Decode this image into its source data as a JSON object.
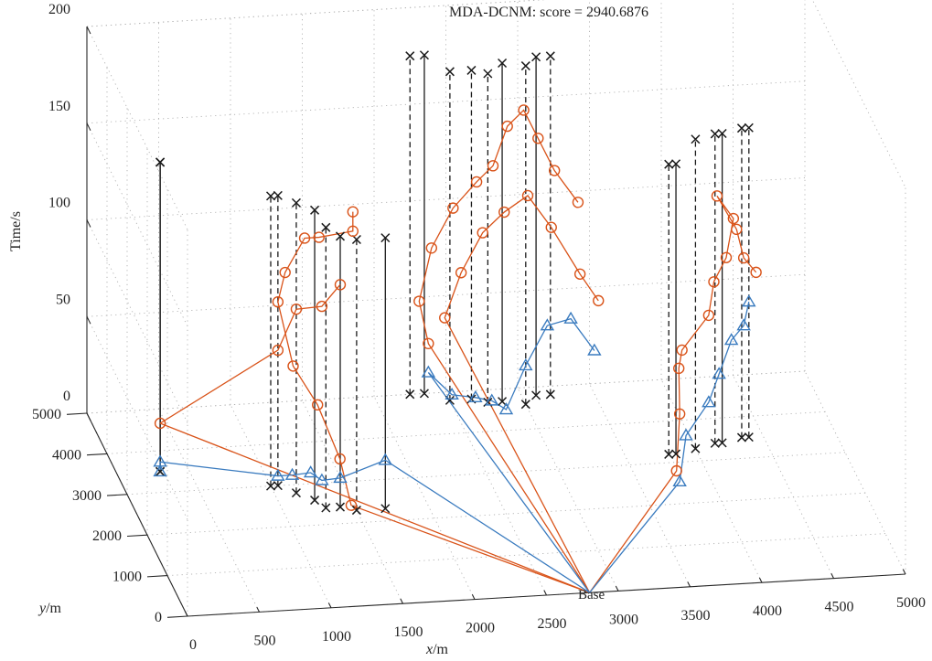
{
  "chart_data": {
    "type": "scatter",
    "projection": "3d",
    "title": "MDA-DCNM: score = 2940.6876",
    "xlabel_italic": "x",
    "xlabel_unit": "/m",
    "ylabel_italic": "y",
    "ylabel_unit": "/m",
    "zlabel": "Time/s",
    "xlim": [
      0,
      5000
    ],
    "ylim": [
      0,
      5000
    ],
    "zlim": [
      0,
      200
    ],
    "xticks": [
      "0",
      "500",
      "1000",
      "1500",
      "2000",
      "2500",
      "3000",
      "3500",
      "4000",
      "4500",
      "5000"
    ],
    "yticks": [
      "0",
      "1000",
      "2000",
      "3000",
      "4000",
      "5000"
    ],
    "zticks": [
      "0",
      "50",
      "100",
      "150",
      "200"
    ],
    "grid": true,
    "base_label": "Base",
    "colors": {
      "time_window": "#1a1a1a",
      "arrival_marker": "#d95319",
      "departure_marker": "#3a7bbf",
      "grid": "#b0b0b0"
    },
    "series": [
      {
        "name": "",
        "kind": "time_window",
        "marker": "x",
        "points": [
          {
            "x": 300,
            "y": 3500,
            "t0": 0,
            "t1": 160,
            "style": "solid"
          },
          {
            "x": 300,
            "y": 3500,
            "t0": 0,
            "t1": 160,
            "style": "solid"
          },
          {
            "x": 1000,
            "y": 3000,
            "t0": 0,
            "t1": 150,
            "style": "dashed"
          },
          {
            "x": 1050,
            "y": 3000,
            "t0": 0,
            "t1": 150,
            "style": "dashed"
          },
          {
            "x": 1150,
            "y": 2800,
            "t0": 0,
            "t1": 150,
            "style": "dashed"
          },
          {
            "x": 1250,
            "y": 2600,
            "t0": 0,
            "t1": 150,
            "style": "solid"
          },
          {
            "x": 1300,
            "y": 2400,
            "t0": 0,
            "t1": 145,
            "style": "dashed"
          },
          {
            "x": 1400,
            "y": 2400,
            "t0": 0,
            "t1": 140,
            "style": "solid"
          },
          {
            "x": 1500,
            "y": 2300,
            "t0": 0,
            "t1": 140,
            "style": "dashed"
          },
          {
            "x": 1700,
            "y": 2300,
            "t0": 0,
            "t1": 140,
            "style": "solid"
          },
          {
            "x": 2250,
            "y": 5000,
            "t0": 0,
            "t1": 175,
            "style": "dashed"
          },
          {
            "x": 2350,
            "y": 5000,
            "t0": 0,
            "t1": 175,
            "style": "solid"
          },
          {
            "x": 2500,
            "y": 4800,
            "t0": 0,
            "t1": 170,
            "style": "dashed"
          },
          {
            "x": 2650,
            "y": 4800,
            "t0": 0,
            "t1": 170,
            "style": "dashed"
          },
          {
            "x": 2750,
            "y": 4700,
            "t0": 0,
            "t1": 170,
            "style": "dashed"
          },
          {
            "x": 2850,
            "y": 4700,
            "t0": 0,
            "t1": 175,
            "style": "solid"
          },
          {
            "x": 3000,
            "y": 4600,
            "t0": 0,
            "t1": 175,
            "style": "dashed"
          },
          {
            "x": 3100,
            "y": 4800,
            "t0": 0,
            "t1": 175,
            "style": "solid"
          },
          {
            "x": 3200,
            "y": 4800,
            "t0": 0,
            "t1": 175,
            "style": "dashed"
          },
          {
            "x": 3800,
            "y": 3200,
            "t0": 0,
            "t1": 150,
            "style": "dashed"
          },
          {
            "x": 3850,
            "y": 3200,
            "t0": 0,
            "t1": 150,
            "style": "solid"
          },
          {
            "x": 4000,
            "y": 3300,
            "t0": 0,
            "t1": 160,
            "style": "dashed"
          },
          {
            "x": 4150,
            "y": 3400,
            "t0": 0,
            "t1": 160,
            "style": "dashed"
          },
          {
            "x": 4200,
            "y": 3400,
            "t0": 0,
            "t1": 160,
            "style": "solid"
          },
          {
            "x": 4350,
            "y": 3500,
            "t0": 0,
            "t1": 160,
            "style": "dashed"
          },
          {
            "x": 4400,
            "y": 3500,
            "t0": 0,
            "t1": 160,
            "style": "dashed"
          }
        ]
      },
      {
        "name": "",
        "kind": "arrival",
        "marker": "o",
        "color": "#d95319",
        "paths": [
          [
            [
              2800,
              0,
              0
            ],
            [
              1350,
              1500,
              20
            ],
            [
              1300,
              1700,
              40
            ],
            [
              1200,
              2100,
              60
            ],
            [
              1100,
              2600,
              70
            ],
            [
              1050,
              3000,
              95
            ],
            [
              1100,
              3000,
              110
            ],
            [
              1250,
              3100,
              125
            ],
            [
              1350,
              3100,
              125
            ],
            [
              1600,
              3200,
              125
            ],
            [
              1600,
              3200,
              135
            ]
          ],
          [
            [
              2800,
              0,
              0
            ],
            [
              300,
              3500,
              25
            ],
            [
              1050,
              3000,
              70
            ],
            [
              1150,
              2800,
              95
            ],
            [
              1300,
              2600,
              100
            ],
            [
              1400,
              2400,
              115
            ]
          ],
          [
            [
              2800,
              0,
              0
            ],
            [
              2350,
              4800,
              30
            ],
            [
              2300,
              4900,
              50
            ],
            [
              2400,
              5000,
              75
            ],
            [
              2550,
              5000,
              95
            ],
            [
              2700,
              4900,
              110
            ],
            [
              2800,
              4800,
              120
            ],
            [
              2900,
              4800,
              140
            ],
            [
              3000,
              4700,
              150
            ],
            [
              3100,
              4700,
              135
            ],
            [
              3200,
              4600,
              120
            ],
            [
              3350,
              4500,
              105
            ]
          ],
          [
            [
              2800,
              0,
              0
            ],
            [
              2450,
              4700,
              45
            ],
            [
              2550,
              4600,
              70
            ],
            [
              2700,
              4600,
              90
            ],
            [
              2850,
              4600,
              100
            ],
            [
              3000,
              4500,
              110
            ],
            [
              3150,
              4400,
              95
            ],
            [
              3350,
              4400,
              70
            ],
            [
              3450,
              4200,
              60
            ]
          ],
          [
            [
              2800,
              0,
              0
            ],
            [
              3700,
              2100,
              15
            ],
            [
              3750,
              2300,
              40
            ],
            [
              3800,
              2700,
              55
            ],
            [
              3850,
              2900,
              60
            ],
            [
              4050,
              3000,
              75
            ],
            [
              4100,
              3100,
              90
            ],
            [
              4200,
              3200,
              100
            ],
            [
              4250,
              3200,
              120
            ],
            [
              4150,
              3300,
              130
            ],
            [
              4300,
              3400,
              110
            ],
            [
              4350,
              3400,
              95
            ],
            [
              4450,
              3500,
              85
            ]
          ]
        ]
      },
      {
        "name": "",
        "kind": "departure",
        "marker": "^",
        "color": "#3a7bbf",
        "paths": [
          [
            [
              2800,
              0,
              0
            ],
            [
              1700,
              2300,
              25
            ],
            [
              1400,
              2400,
              15
            ],
            [
              1300,
              2600,
              10
            ],
            [
              1250,
              2800,
              10
            ],
            [
              1150,
              3000,
              5
            ],
            [
              1050,
              3000,
              5
            ],
            [
              300,
              3500,
              5
            ],
            [
              300,
              3500,
              0
            ]
          ],
          [
            [
              2800,
              0,
              0
            ],
            [
              2350,
              4800,
              15
            ],
            [
              2500,
              4700,
              5
            ],
            [
              2650,
              4600,
              5
            ],
            [
              2750,
              4500,
              5
            ],
            [
              2850,
              4500,
              0
            ],
            [
              3000,
              4600,
              20
            ],
            [
              3150,
              4600,
              40
            ],
            [
              3300,
              4500,
              45
            ],
            [
              3450,
              4400,
              30
            ]
          ],
          [
            [
              2800,
              0,
              0
            ],
            [
              3750,
              2300,
              5
            ],
            [
              3850,
              2700,
              20
            ],
            [
              4050,
              3000,
              30
            ],
            [
              4150,
              3200,
              40
            ],
            [
              4250,
              3300,
              55
            ],
            [
              4350,
              3400,
              60
            ],
            [
              4400,
              3500,
              70
            ]
          ]
        ]
      }
    ]
  }
}
